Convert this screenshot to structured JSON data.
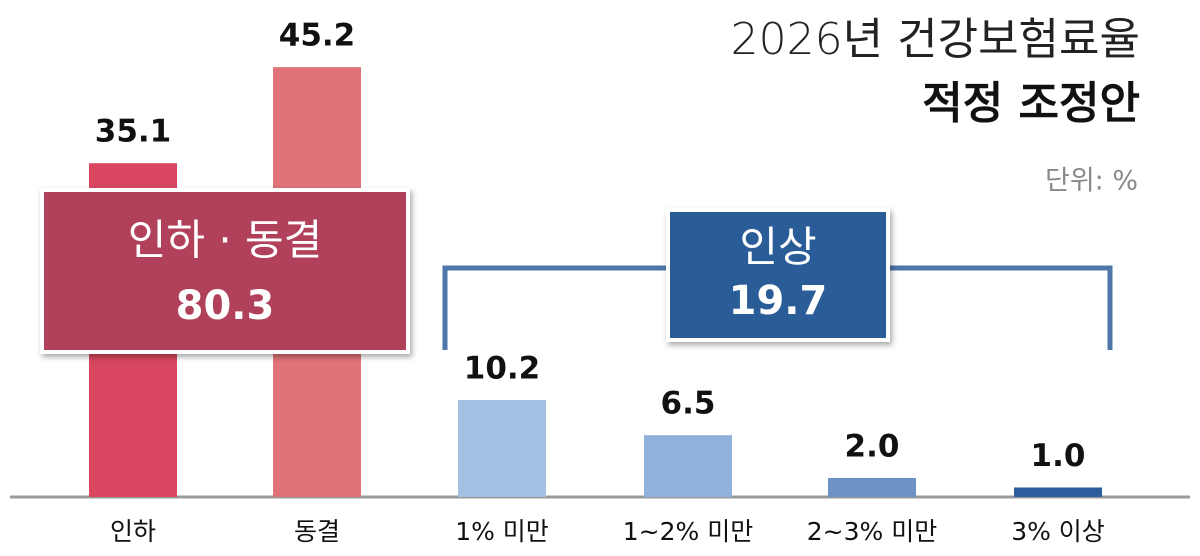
{
  "chart_data": {
    "type": "bar",
    "title": "2026년 건강보험료율",
    "subtitle": "적정 조정안",
    "unit_label": "단위: %",
    "categories": [
      "인하",
      "동결",
      "1% 미만",
      "1~2% 미만",
      "2~3% 미만",
      "3% 이상"
    ],
    "values": [
      35.1,
      45.2,
      10.2,
      6.5,
      2.0,
      1.0
    ],
    "value_labels": [
      "35.1",
      "45.2",
      "10.2",
      "6.5",
      "2.0",
      "1.0"
    ],
    "colors": [
      "#d8475f",
      "#e07379",
      "#a3c0e2",
      "#8fb1dc",
      "#6f92c6",
      "#2d5d9d"
    ],
    "groups": [
      {
        "label": "인하 · 동결",
        "value": 80.3,
        "color": "#b13f5a"
      },
      {
        "label": "인상",
        "value": 19.7,
        "color": "#2a5b98"
      }
    ]
  }
}
